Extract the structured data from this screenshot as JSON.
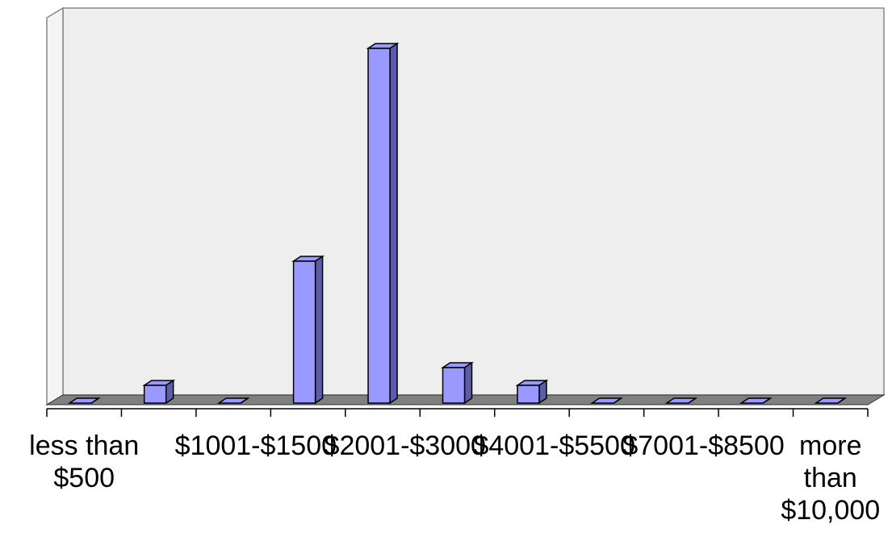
{
  "chart_data": {
    "type": "bar3d",
    "categories": [
      "less than $500",
      null,
      "$1001-$1500",
      null,
      "$2001-$3000",
      null,
      "$4001-$5500",
      null,
      "$7001-$8500",
      null,
      "more than $10,000"
    ],
    "values": [
      0,
      1,
      0,
      8,
      20,
      2,
      1,
      0,
      0,
      0,
      0
    ],
    "color": "#9999ff"
  }
}
